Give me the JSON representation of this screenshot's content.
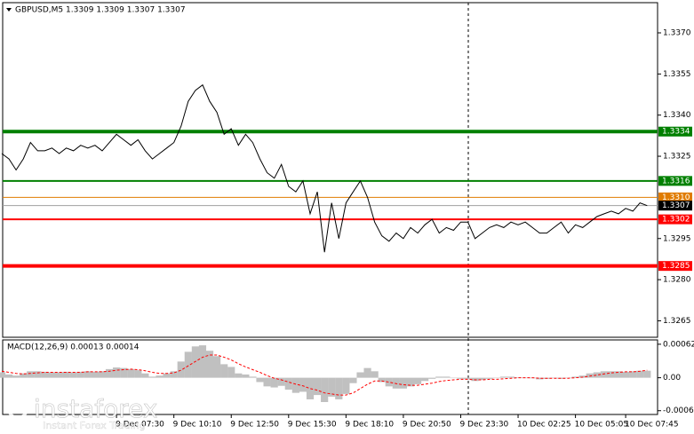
{
  "chart_data": [
    {
      "type": "line",
      "title": "GBPUSD,M5  1.3309 1.3309 1.3307 1.3307",
      "categories": [
        null,
        null,
        null,
        null,
        null,
        null,
        null,
        null,
        null,
        null,
        null,
        null,
        null,
        null,
        null,
        null,
        "9 Dec 07:30",
        null,
        null,
        null,
        null,
        null,
        null,
        null,
        "9 Dec 10:10",
        null,
        null,
        null,
        null,
        null,
        null,
        null,
        "9 Dec 12:50",
        null,
        null,
        null,
        null,
        null,
        null,
        null,
        "9 Dec 15:30",
        null,
        null,
        null,
        null,
        null,
        null,
        null,
        "9 Dec 18:10",
        null,
        null,
        null,
        null,
        null,
        null,
        null,
        "9 Dec 20:50",
        null,
        null,
        null,
        null,
        null,
        null,
        null,
        "9 Dec 23:30",
        null,
        null,
        null,
        null,
        null,
        null,
        null,
        "10 Dec 02:25",
        null,
        null,
        null,
        null,
        null,
        null,
        null,
        "10 Dec 05:05",
        null,
        null,
        null,
        null,
        null,
        null,
        "10 Dec 07:45",
        null,
        null,
        null
      ],
      "series": [
        {
          "color": "#000000",
          "values": [
            1.3326,
            1.3324,
            1.332,
            1.3324,
            1.333,
            1.3327,
            1.3327,
            1.3328,
            1.3326,
            1.3328,
            1.3327,
            1.3329,
            1.3328,
            1.3329,
            1.3327,
            1.333,
            1.3333,
            1.3331,
            1.3329,
            1.3331,
            1.3327,
            1.3324,
            1.3326,
            1.3328,
            1.333,
            1.3336,
            1.3345,
            1.3349,
            1.3351,
            1.3345,
            1.3341,
            1.3333,
            1.3335,
            1.3329,
            1.3333,
            1.333,
            1.3324,
            1.3319,
            1.3317,
            1.3322,
            1.3314,
            1.3312,
            1.3316,
            1.3304,
            1.3312,
            1.329,
            1.3308,
            1.3295,
            1.3308,
            1.3312,
            1.3316,
            1.331,
            1.3301,
            1.3296,
            1.3294,
            1.3297,
            1.3295,
            1.3299,
            1.3297,
            1.33,
            1.3302,
            1.3297,
            1.3299,
            1.3298,
            1.3301,
            1.3301,
            1.3295,
            1.3297,
            1.3299,
            1.33,
            1.3299,
            1.3301,
            1.33,
            1.3301,
            1.3299,
            1.3297,
            1.3297,
            1.3299,
            1.3301,
            1.3297,
            1.33,
            1.3299,
            1.3301,
            1.3303,
            1.3304,
            1.3305,
            1.3304,
            1.3306,
            1.3305,
            1.3308,
            1.3307
          ]
        }
      ],
      "ylim": [
        1.3259,
        1.3381
      ],
      "yticks": [
        {
          "value": 1.337,
          "label": "1.3370"
        },
        {
          "value": 1.3355,
          "label": "1.3355"
        },
        {
          "value": 1.334,
          "label": "1.3340"
        },
        {
          "value": 1.3325,
          "label": "1.3325"
        },
        {
          "value": 1.3295,
          "label": "1.3295"
        },
        {
          "value": 1.328,
          "label": "1.3280"
        },
        {
          "value": 1.3265,
          "label": "1.3265"
        }
      ],
      "levels": [
        {
          "value": 1.3334,
          "label": "1.3334",
          "color": "#008000",
          "line_width": 4
        },
        {
          "value": 1.3316,
          "label": "1.3316",
          "color": "#008000",
          "line_width": 2
        },
        {
          "value": 1.331,
          "label": "1.3310",
          "color": "#e07b00",
          "line_width": 1
        },
        {
          "value": 1.3302,
          "label": "1.3302",
          "color": "#ff0000",
          "line_width": 2
        },
        {
          "value": 1.3285,
          "label": "1.3285",
          "color": "#ff0000",
          "line_width": 4
        }
      ],
      "current_price": {
        "value": 1.3307,
        "label": "1.3307",
        "color": "#a0a0a0"
      },
      "watermark": {
        "brand": "instaforex",
        "tagline": "Instant Forex Trading"
      }
    },
    {
      "type": "bar",
      "title": "MACD(12,26,9) 0.00013 0.00014",
      "series": [
        {
          "type": "bar",
          "color": "#c0c0c0",
          "values": [
            0.0001,
            6e-05,
            4e-05,
            8e-05,
            0.00012,
            0.00012,
            0.00011,
            0.0001,
            0.0001,
            0.00011,
            0.0001,
            0.00011,
            0.00012,
            0.00011,
            0.00012,
            0.00016,
            0.00019,
            0.00018,
            0.00016,
            0.00014,
            8e-05,
            2e-05,
            4e-05,
            8e-05,
            0.00012,
            0.0003,
            0.00048,
            0.00058,
            0.0006,
            0.0005,
            0.0004,
            0.00025,
            0.0002,
            8e-05,
            6e-05,
            2e-05,
            -8e-05,
            -0.00016,
            -0.00018,
            -0.00015,
            -0.00022,
            -0.00028,
            -0.00026,
            -0.0004,
            -0.00032,
            -0.00045,
            -0.00035,
            -0.0004,
            -0.0003,
            -0.0001,
            0.0001,
            0.00018,
            0.00012,
            -8e-05,
            -0.00016,
            -0.0002,
            -0.0002,
            -0.00016,
            -0.00012,
            -6e-05,
            -2e-05,
            2e-05,
            2e-05,
            0,
            -2e-05,
            -3e-05,
            -6e-05,
            -4e-05,
            -2e-05,
            0,
            2e-05,
            2e-05,
            1e-05,
            0,
            -1e-05,
            -3e-05,
            -2e-05,
            0,
            -2e-05,
            0,
            2e-05,
            4e-05,
            8e-05,
            0.0001,
            0.00012,
            0.00012,
            0.00012,
            0.00011,
            0.00012,
            0.00013,
            0.00013
          ]
        },
        {
          "type": "line",
          "color": "#ff0000",
          "values": [
            0.00012,
            0.0001,
            8e-05,
            7e-05,
            8e-05,
            9e-05,
            0.0001,
            0.0001,
            0.0001,
            0.0001,
            0.0001,
            0.0001,
            0.00011,
            0.00011,
            0.00011,
            0.00012,
            0.00014,
            0.00015,
            0.00016,
            0.00015,
            0.00013,
            0.0001,
            8e-05,
            8e-05,
            9e-05,
            0.00014,
            0.00022,
            0.0003,
            0.00038,
            0.00042,
            0.00042,
            0.00038,
            0.00033,
            0.00026,
            0.0002,
            0.00015,
            0.0001,
            4e-05,
            -1e-05,
            -4e-05,
            -8e-05,
            -0.00012,
            -0.00015,
            -0.0002,
            -0.00023,
            -0.00028,
            -0.0003,
            -0.00032,
            -0.00032,
            -0.00028,
            -0.0002,
            -0.00012,
            -6e-05,
            -6e-05,
            -8e-05,
            -0.00011,
            -0.00013,
            -0.00014,
            -0.00014,
            -0.00012,
            -0.0001,
            -7e-05,
            -5e-05,
            -4e-05,
            -3e-05,
            -3e-05,
            -4e-05,
            -4e-05,
            -3e-05,
            -3e-05,
            -2e-05,
            -1e-05,
            0,
            0,
            0,
            -1e-05,
            -1e-05,
            -1e-05,
            -1e-05,
            -1e-05,
            0,
            1e-05,
            3e-05,
            5e-05,
            7e-05,
            9e-05,
            0.0001,
            0.00011,
            0.00011,
            0.00012,
            0.00014
          ]
        }
      ],
      "ylim": [
        -0.00068,
        0.0007
      ],
      "yticks": [
        0.00062,
        {
          "value": 0,
          "label": "0.00"
        },
        -0.00061
      ]
    }
  ]
}
